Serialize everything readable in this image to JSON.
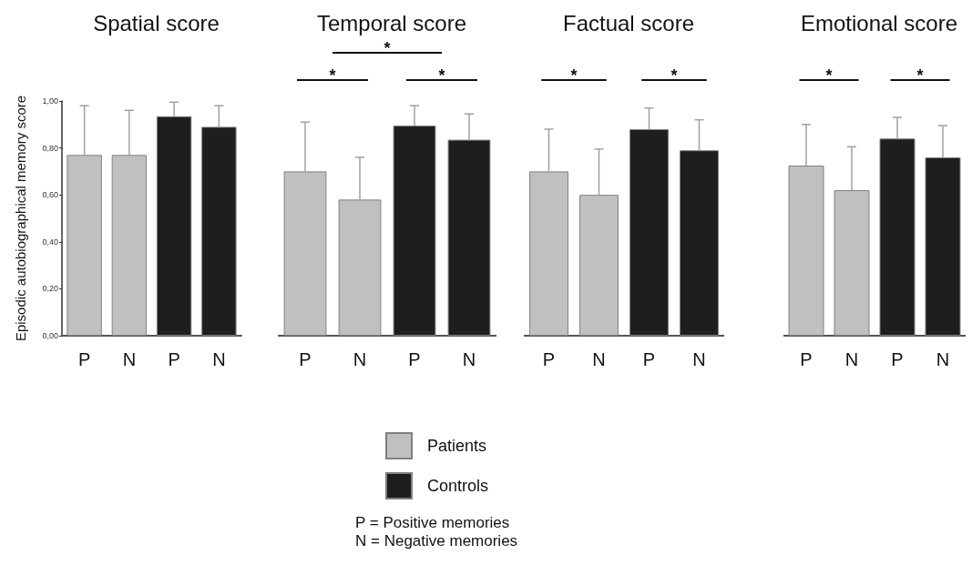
{
  "chart_data": [
    {
      "type": "bar",
      "title": "Spatial score",
      "ylabel": "Episodic autobiographical memory score",
      "categories": [
        "P",
        "N",
        "P",
        "N"
      ],
      "series": [
        {
          "name": "Patients",
          "color": "#c0c0c0",
          "values": [
            0.77,
            0.77,
            null,
            null
          ],
          "errors": [
            0.21,
            0.19,
            null,
            null
          ]
        },
        {
          "name": "Controls",
          "color": "#1e1e1e",
          "values": [
            null,
            null,
            0.935,
            0.89
          ],
          "errors": [
            null,
            null,
            0.06,
            0.09
          ]
        }
      ],
      "ylim": [
        0,
        1
      ],
      "yticks": [
        {
          "value": 0,
          "label": "0,00"
        },
        {
          "value": 0.2,
          "label": "0,20"
        },
        {
          "value": 0.4,
          "label": "0,40"
        },
        {
          "value": 0.6,
          "label": "0,60"
        },
        {
          "value": 0.8,
          "label": "0,80"
        },
        {
          "value": 1,
          "label": "1,00"
        }
      ],
      "legend": "bottom",
      "annotations": [
        "P = Positive memories",
        "N = Negative memories"
      ]
    },
    {
      "type": "bar",
      "title": "Temporal score",
      "categories": [
        "P",
        "N",
        "P",
        "N"
      ],
      "series": [
        {
          "color": "#c0c0c0",
          "values": [
            0.7,
            0.58,
            null,
            null
          ],
          "errors": [
            0.21,
            0.18,
            null,
            null
          ]
        },
        {
          "color": "#1e1e1e",
          "values": [
            null,
            null,
            0.895,
            0.835
          ],
          "errors": [
            null,
            null,
            0.085,
            0.11
          ]
        }
      ],
      "ylim": [
        0,
        1
      ],
      "tick_labels": "x",
      "annotations": [
        "*",
        "*",
        "*"
      ]
    },
    {
      "type": "bar",
      "title": "Factual score",
      "categories": [
        "P",
        "N",
        "P",
        "N"
      ],
      "series": [
        {
          "color": "#c0c0c0",
          "values": [
            0.7,
            0.6,
            null,
            null
          ],
          "errors": [
            0.18,
            0.195,
            null,
            null
          ]
        },
        {
          "color": "#1e1e1e",
          "values": [
            null,
            null,
            0.88,
            0.79
          ],
          "errors": [
            null,
            null,
            0.09,
            0.13
          ]
        }
      ],
      "ylim": [
        0,
        1
      ],
      "tick_labels": "x",
      "annotations": [
        "*",
        "*"
      ]
    },
    {
      "type": "bar",
      "title": "Emotional score",
      "categories": [
        "P",
        "N",
        "P",
        "N"
      ],
      "series": [
        {
          "color": "#c0c0c0",
          "values": [
            0.725,
            0.62,
            null,
            null
          ],
          "errors": [
            0.175,
            0.185,
            null,
            null
          ]
        },
        {
          "color": "#1e1e1e",
          "values": [
            null,
            null,
            0.84,
            0.76
          ],
          "errors": [
            null,
            null,
            0.09,
            0.135
          ]
        }
      ],
      "ylim": [
        0,
        1
      ],
      "tick_labels": "x",
      "annotations": [
        "*",
        "*"
      ]
    }
  ]
}
